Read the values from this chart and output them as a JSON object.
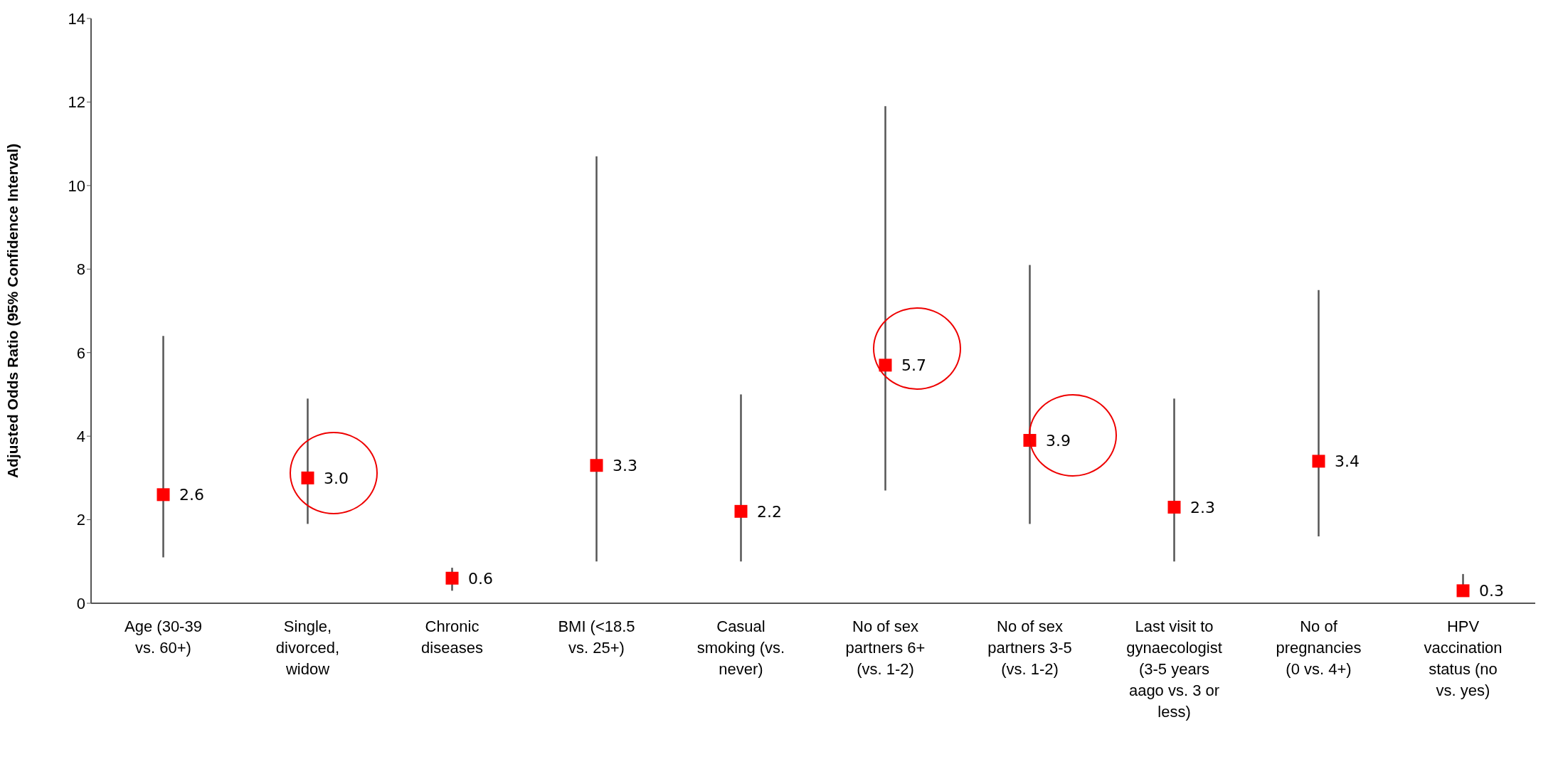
{
  "chart_data": {
    "type": "scatter",
    "ylabel": "Adjusted Odds Ratio (95% Confidence Interval)",
    "categories": [
      "Age (30-39 vs. 60+)",
      "Single, divorced, widow",
      "Chronic diseases",
      "BMI (<18.5 vs. 25+)",
      "Casual smoking (vs. never)",
      "No of sex partners 6+ (vs. 1-2)",
      "No of sex partners 3-5 (vs. 1-2)",
      "Last visit to gynaecologist (3-5 years aago vs. 3 or less)",
      "No of pregnancies (0 vs. 4+)",
      "HPV vaccination status (no vs. yes)"
    ],
    "values": [
      2.6,
      3.0,
      0.6,
      3.3,
      2.2,
      5.7,
      3.9,
      2.3,
      3.4,
      0.3
    ],
    "value_labels": [
      "2.6",
      "3.0",
      "0.6",
      "3.3",
      "2.2",
      "5.7",
      "3.9",
      "2.3",
      "3.4",
      "0.3"
    ],
    "errors": [
      [
        1.1,
        6.4
      ],
      [
        1.9,
        4.9
      ],
      [
        0.3,
        0.85
      ],
      [
        1.0,
        10.7
      ],
      [
        1.0,
        5.0
      ],
      [
        2.7,
        11.9
      ],
      [
        1.9,
        8.1
      ],
      [
        1.0,
        4.9
      ],
      [
        1.6,
        7.5
      ],
      [
        0.2,
        0.7
      ]
    ],
    "color": "#ff0000",
    "marker": "square",
    "ylim": [
      0,
      14
    ],
    "yticks": [
      0,
      2,
      4,
      6,
      8,
      10,
      12,
      14
    ],
    "grid": false
  }
}
